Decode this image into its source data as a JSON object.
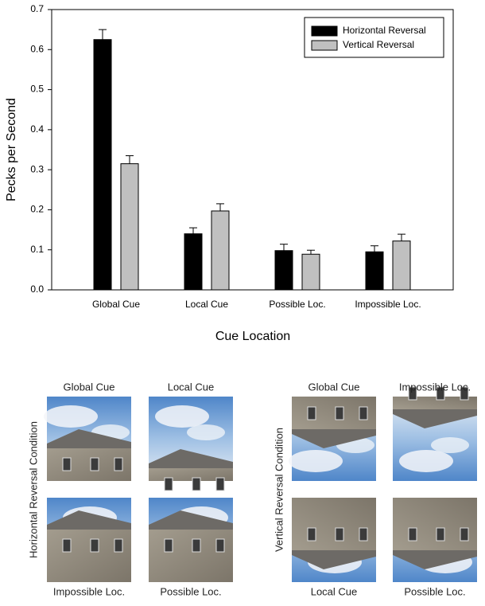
{
  "chart_data": {
    "type": "bar",
    "y_label": "Pecks per Second",
    "x_label": "Cue Location",
    "categories": [
      "Global Cue",
      "Local Cue",
      "Possible Loc.",
      "Impossible Loc."
    ],
    "series": [
      {
        "name": "Horizontal Reversal",
        "color": "#000000",
        "values": [
          0.625,
          0.14,
          0.098,
          0.095
        ],
        "errors": [
          0.025,
          0.015,
          0.016,
          0.015
        ]
      },
      {
        "name": "Vertical Reversal",
        "color": "#c0c0c0",
        "values": [
          0.315,
          0.197,
          0.089,
          0.122
        ],
        "errors": [
          0.02,
          0.018,
          0.01,
          0.017
        ]
      }
    ],
    "ylim": [
      0,
      0.7
    ],
    "yticks": [
      {
        "value": 0,
        "label": "0.0"
      },
      0.1,
      0.2,
      0.3,
      0.4,
      0.5,
      0.6,
      0.7
    ],
    "legend": "upper right",
    "grid": false
  },
  "figure_panels": [
    {
      "condition": "Horizontal Reversal Condition",
      "images": [
        "Global Cue",
        "Local Cue",
        "Impossible Loc.",
        "Possible Loc."
      ]
    },
    {
      "condition": "Vertical Reversal Condition",
      "images": [
        "Global Cue",
        "Impossible Loc.",
        "Local Cue",
        "Possible Loc."
      ]
    }
  ]
}
